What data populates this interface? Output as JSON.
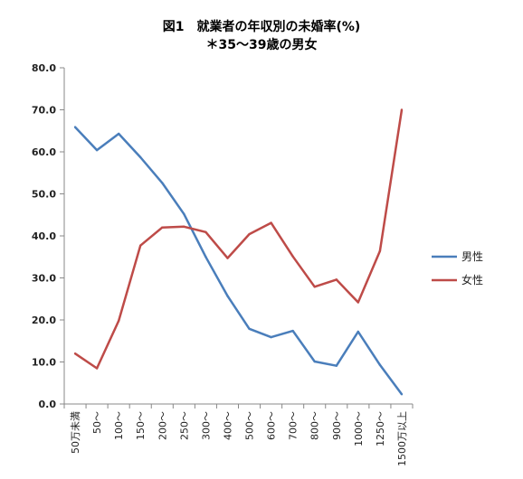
{
  "chart_data": {
    "type": "line",
    "title": "図1　就業者の年収別の未婚率(%)",
    "subtitle": "＊35～39歳の男女",
    "categories": [
      "50万未満",
      "50～",
      "100～",
      "150～",
      "200～",
      "250～",
      "300～",
      "400～",
      "500～",
      "600～",
      "700～",
      "800～",
      "900～",
      "1000～",
      "1250～",
      "1500万以上"
    ],
    "ylim": [
      0,
      80
    ],
    "yticks": [
      "0.0",
      "10.0",
      "20.0",
      "30.0",
      "40.0",
      "50.0",
      "60.0",
      "70.0",
      "80.0"
    ],
    "series": [
      {
        "name": "男性",
        "color": "#4a7ebb",
        "values": [
          65.9,
          60.4,
          64.3,
          58.7,
          52.6,
          45.2,
          35.0,
          25.7,
          17.9,
          15.9,
          17.4,
          10.1,
          9.1,
          17.2,
          9.3,
          2.3
        ]
      },
      {
        "name": "女性",
        "color": "#be4b48",
        "values": [
          12.0,
          8.5,
          19.8,
          37.7,
          42.0,
          42.2,
          40.9,
          34.7,
          40.4,
          43.1,
          35.1,
          27.9,
          29.6,
          24.2,
          36.4,
          70.0
        ]
      }
    ],
    "legend_position": "right",
    "grid": false
  }
}
